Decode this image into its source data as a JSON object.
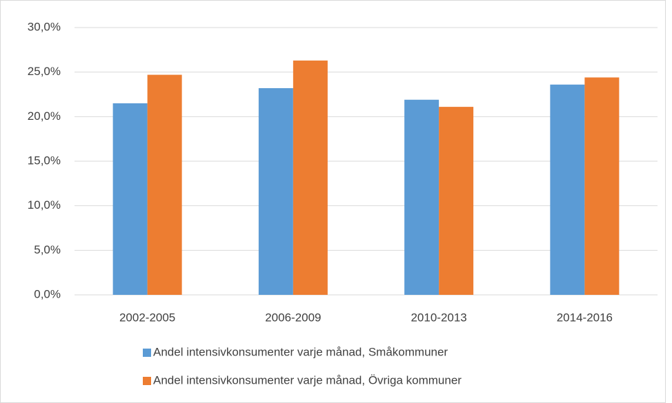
{
  "chart_data": {
    "type": "bar",
    "categories": [
      "2002-2005",
      "2006-2009",
      "2010-2013",
      "2014-2016"
    ],
    "series": [
      {
        "name": "Andel intensivkonsumenter varje månad, Småkommuner",
        "color": "#5b9bd5",
        "values": [
          21.5,
          23.2,
          21.9,
          23.6
        ]
      },
      {
        "name": "Andel intensivkonsumenter varje månad, Övriga kommuner",
        "color": "#ed7d31",
        "values": [
          24.7,
          26.3,
          21.1,
          24.4
        ]
      }
    ],
    "ylim": [
      0,
      30
    ],
    "yticks": [
      {
        "value": 0,
        "label": "0,0%"
      },
      {
        "value": 5,
        "label": "5,0%"
      },
      {
        "value": 10,
        "label": "10,0%"
      },
      {
        "value": 15,
        "label": "15,0%"
      },
      {
        "value": 20,
        "label": "20,0%"
      },
      {
        "value": 25,
        "label": "25,0%"
      },
      {
        "value": 30,
        "label": "30,0%"
      }
    ],
    "grid": true,
    "legend": "bottom"
  }
}
